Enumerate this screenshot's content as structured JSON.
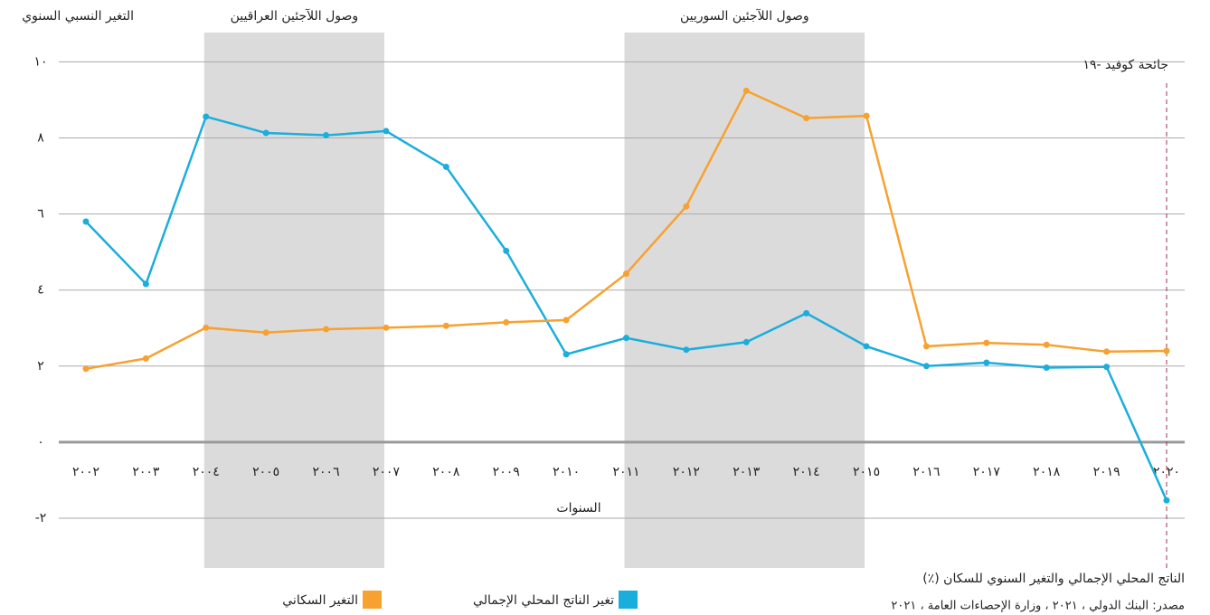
{
  "chart_data": {
    "type": "line",
    "y_label": "التغير النسبي السنوي",
    "x_label": "السنوات",
    "caption": "الناتج المحلي الإجمالي والتغير السنوي للسكان (٪)",
    "source": "مصدر: البنك الدولي ، ٢٠٢١ ، وزارة الإحصاءات العامة ، ٢٠٢١",
    "categories": [
      "٢٠٠٢",
      "٢٠٠٣",
      "٢٠٠٤",
      "٢٠٠٥",
      "٢٠٠٦",
      "٢٠٠٧",
      "٢٠٠٨",
      "٢٠٠٩",
      "٢٠١٠",
      "٢٠١١",
      "٢٠١٢",
      "٢٠١٣",
      "٢٠١٤",
      "٢٠١٥",
      "٢٠١٦",
      "٢٠١٧",
      "٢٠١٨",
      "٢٠١٩",
      "٢٠٢٠"
    ],
    "series": [
      {
        "name": "تغير الناتج المحلي الإجمالي",
        "color": "#1aaedc",
        "values": [
          5.8,
          4.16,
          8.56,
          8.13,
          8.07,
          8.18,
          7.24,
          5.03,
          2.31,
          2.74,
          2.43,
          2.63,
          3.39,
          2.52,
          2.0,
          2.09,
          1.96,
          1.98,
          -1.53
        ]
      },
      {
        "name": "التغير السكاني",
        "color": "#f7a130",
        "values": [
          1.93,
          2.2,
          3.01,
          2.88,
          2.97,
          3.01,
          3.06,
          3.15,
          3.21,
          4.43,
          6.2,
          9.24,
          8.52,
          8.58,
          2.52,
          2.61,
          2.56,
          2.38,
          2.4
        ]
      }
    ],
    "ylim": [
      -2.5,
      10.2
    ],
    "yticks": [
      {
        "value": -2,
        "label": "-٢"
      },
      {
        "value": 0,
        "label": "٠"
      },
      {
        "value": 2,
        "label": "٢"
      },
      {
        "value": 4,
        "label": "٤"
      },
      {
        "value": 6,
        "label": "٦"
      },
      {
        "value": 8,
        "label": "٨"
      },
      {
        "value": 10,
        "label": "١٠"
      }
    ],
    "grid": true,
    "shaded_periods": [
      {
        "label": "وصول اللآجئين العراقيين",
        "start": "٢٠٠٤",
        "end": "٢٠٠٧"
      },
      {
        "label": "وصول اللآجئين السوريين",
        "start": "٢٠١١",
        "end": "٢٠١٥"
      }
    ],
    "marker_line": {
      "label": "جائحة كوفيد -١٩",
      "at": "٢٠٢٠"
    }
  }
}
